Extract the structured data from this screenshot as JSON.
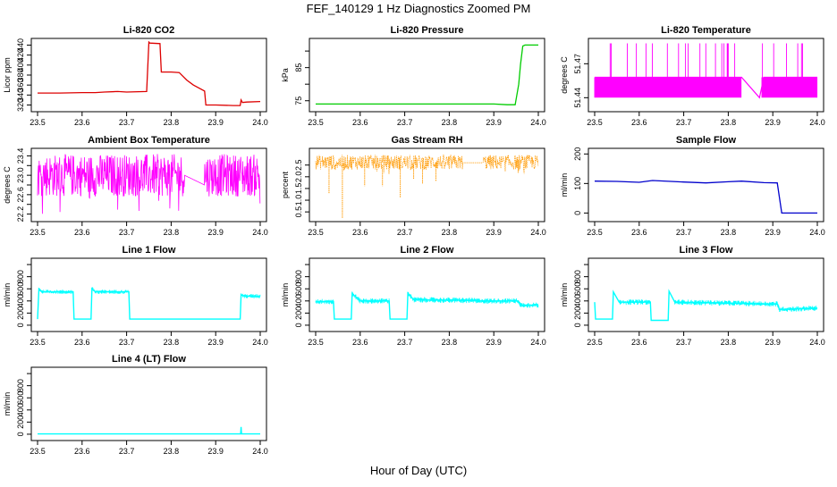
{
  "figure": {
    "title": "FEF_140129  1 Hz Diagnostics Zoomed PM",
    "xlabel": "Hour of Day (UTC)"
  },
  "chart_data": [
    {
      "type": "line",
      "title": "Li-820 CO2",
      "ylabel": "Licor ppm",
      "color": "#dd0000",
      "xlim": [
        23.5,
        24.0
      ],
      "x_ticks": [
        "23.5",
        "23.6",
        "23.7",
        "23.8",
        "23.9",
        "24.0"
      ],
      "ylim": [
        312,
        448
      ],
      "y_ticks": [
        320,
        340,
        360,
        380,
        400,
        420,
        440
      ],
      "series": [
        {
          "x": [
            23.5,
            23.55,
            23.6,
            23.63,
            23.65,
            23.68,
            23.7,
            23.745,
            23.75,
            23.752,
            23.775,
            23.778,
            23.8,
            23.818,
            23.835,
            23.85,
            23.875,
            23.878,
            23.9,
            23.94,
            23.955,
            23.957,
            23.96,
            23.97,
            24.0
          ],
          "y": [
            344,
            344,
            345,
            345,
            346,
            347,
            346,
            347,
            446,
            444,
            443,
            386,
            386,
            385,
            370,
            360,
            348,
            320,
            320,
            319,
            319,
            330,
            325,
            326,
            327
          ]
        }
      ]
    },
    {
      "type": "line",
      "title": "Li-820 Pressure",
      "ylabel": "kPa",
      "color": "#00cc00",
      "xlim": [
        23.5,
        24.0
      ],
      "x_ticks": [
        "23.5",
        "23.6",
        "23.7",
        "23.8",
        "23.9",
        "24.0"
      ],
      "ylim": [
        72.5,
        93
      ],
      "y_ticks": [
        75,
        80,
        85,
        90
      ],
      "y_tick_labels": [
        "75",
        "",
        "85",
        ""
      ],
      "series": [
        {
          "x": [
            23.5,
            23.7,
            23.9,
            23.93,
            23.948,
            23.956,
            23.96,
            23.965,
            23.97,
            24.0
          ],
          "y": [
            74.0,
            74.0,
            74.0,
            73.8,
            73.8,
            80,
            86,
            91.5,
            91.8,
            91.8
          ]
        }
      ]
    },
    {
      "type": "line",
      "title": "Li-820 Temperature",
      "ylabel": "degrees C",
      "color": "#ff00ff",
      "xlim": [
        23.5,
        24.0
      ],
      "x_ticks": [
        "23.5",
        "23.6",
        "23.7",
        "23.8",
        "23.9",
        "24.0"
      ],
      "ylim": [
        51.43,
        51.49
      ],
      "y_ticks": [
        51.44,
        51.47
      ],
      "y_tick_labels": [
        "51.44",
        "51.47"
      ],
      "series": [
        {
          "x": [
            23.5,
            23.83,
            23.87,
            23.88,
            24.0
          ],
          "y": [
            51.458,
            51.458,
            51.44,
            51.458,
            51.458
          ],
          "base_level": 51.44,
          "upper_level": 51.458,
          "spike_level": 51.488,
          "gap": [
            23.83,
            23.875
          ]
        }
      ]
    },
    {
      "type": "line",
      "title": "Ambient Box Temperature",
      "ylabel": "degrees C",
      "color": "#ff00ff",
      "xlim": [
        23.5,
        24.0
      ],
      "x_ticks": [
        "23.5",
        "23.6",
        "23.7",
        "23.8",
        "23.9",
        "24.0"
      ],
      "ylim": [
        22.1,
        23.5
      ],
      "y_ticks": [
        22.2,
        22.4,
        22.6,
        22.8,
        23.0,
        23.2,
        23.4
      ],
      "y_tick_labels": [
        "22.2",
        "",
        "22.6",
        "",
        "23.0",
        "",
        "23.4"
      ],
      "series": [
        {
          "x": [
            23.5,
            23.83,
            23.875,
            23.88,
            24.0
          ],
          "y": [
            23.0,
            23.0,
            22.8,
            23.05,
            23.05
          ],
          "range_low": 22.2,
          "range_high": 23.45,
          "gap": [
            23.83,
            23.875
          ]
        }
      ]
    },
    {
      "type": "scatter",
      "title": "Gas Stream RH",
      "ylabel": "percent",
      "color": "#ff9900",
      "xlim": [
        23.5,
        24.0
      ],
      "x_ticks": [
        "23.5",
        "23.6",
        "23.7",
        "23.8",
        "23.9",
        "24.0"
      ],
      "ylim": [
        0.2,
        3.1
      ],
      "y_ticks": [
        0.5,
        1.0,
        1.5,
        2.0,
        2.5
      ],
      "y_tick_labels": [
        "0.5",
        "1.0",
        "1.5",
        "2.0",
        "2.5"
      ],
      "series": [
        {
          "x": [
            23.5,
            23.56,
            23.6,
            23.7,
            23.8,
            23.83,
            23.875,
            23.88,
            24.0
          ],
          "y": [
            2.65,
            2.6,
            2.6,
            2.62,
            2.62,
            2.6,
            2.6,
            2.65,
            2.7
          ],
          "range_low": 2.1,
          "range_high": 3.0,
          "dips": [
            [
              23.56,
              0.25
            ],
            [
              23.53,
              1.3
            ],
            [
              23.61,
              1.6
            ],
            [
              23.69,
              1.1
            ],
            [
              23.65,
              1.6
            ],
            [
              23.72,
              1.9
            ],
            [
              23.74,
              1.7
            ],
            [
              23.77,
              1.8
            ]
          ],
          "gap": [
            23.83,
            23.875
          ]
        }
      ]
    },
    {
      "type": "line",
      "title": "Sample Flow",
      "ylabel": "ml/min",
      "color": "#0000cc",
      "xlim": [
        23.5,
        24.0
      ],
      "x_ticks": [
        "23.5",
        "23.6",
        "23.7",
        "23.8",
        "23.9",
        "24.0"
      ],
      "ylim": [
        -20,
        210
      ],
      "y_ticks": [
        0,
        100,
        200
      ],
      "series": [
        {
          "x": [
            23.5,
            23.55,
            23.6,
            23.63,
            23.7,
            23.75,
            23.8,
            23.83,
            23.88,
            23.91,
            23.92,
            23.95,
            24.0
          ],
          "y": [
            108,
            107,
            104,
            110,
            105,
            102,
            106,
            108,
            103,
            102,
            0,
            0,
            0
          ]
        }
      ]
    },
    {
      "type": "line",
      "title": "Line 1 Flow",
      "ylabel": "ml/min",
      "color": "#00ffff",
      "xlim": [
        23.5,
        24.0
      ],
      "x_ticks": [
        "23.5",
        "23.6",
        "23.7",
        "23.8",
        "23.9",
        "24.0"
      ],
      "ylim": [
        -60,
        1060
      ],
      "y_ticks": [
        0,
        200,
        400,
        600,
        800,
        1000
      ],
      "y_tick_labels": [
        "0",
        "200",
        "400",
        "600",
        "800",
        ""
      ],
      "series": [
        {
          "x": [
            23.5,
            23.503,
            23.51,
            23.58,
            23.582,
            23.62,
            23.622,
            23.63,
            23.705,
            23.707,
            23.955,
            23.957,
            23.965,
            24.0
          ],
          "y": [
            100,
            600,
            550,
            550,
            100,
            100,
            600,
            550,
            550,
            100,
            100,
            500,
            480,
            480
          ]
        }
      ]
    },
    {
      "type": "line",
      "title": "Line 2 Flow",
      "ylabel": "ml/min",
      "color": "#00ffff",
      "xlim": [
        23.5,
        24.0
      ],
      "x_ticks": [
        "23.5",
        "23.6",
        "23.7",
        "23.8",
        "23.9",
        "24.0"
      ],
      "ylim": [
        -60,
        1060
      ],
      "y_ticks": [
        0,
        200,
        400,
        600,
        800,
        1000
      ],
      "y_tick_labels": [
        "0",
        "200",
        "400",
        "600",
        "800",
        ""
      ],
      "series": [
        {
          "x": [
            23.5,
            23.54,
            23.542,
            23.58,
            23.582,
            23.6,
            23.665,
            23.667,
            23.705,
            23.707,
            23.72,
            23.83,
            23.88,
            23.955,
            23.96,
            24.0
          ],
          "y": [
            390,
            390,
            100,
            100,
            520,
            400,
            400,
            100,
            100,
            530,
            420,
            410,
            400,
            400,
            330,
            330
          ]
        }
      ]
    },
    {
      "type": "line",
      "title": "Line 3 Flow",
      "ylabel": "ml/min",
      "color": "#00ffff",
      "xlim": [
        23.5,
        24.0
      ],
      "x_ticks": [
        "23.5",
        "23.6",
        "23.7",
        "23.8",
        "23.9",
        "24.0"
      ],
      "ylim": [
        -60,
        1060
      ],
      "y_ticks": [
        0,
        200,
        400,
        600,
        800,
        1000
      ],
      "y_tick_labels": [
        "0",
        "200",
        "400",
        "600",
        "800",
        ""
      ],
      "series": [
        {
          "x": [
            23.5,
            23.502,
            23.54,
            23.542,
            23.555,
            23.625,
            23.627,
            23.665,
            23.667,
            23.68,
            23.83,
            23.88,
            23.91,
            23.915,
            24.0
          ],
          "y": [
            380,
            100,
            100,
            550,
            380,
            380,
            80,
            80,
            560,
            380,
            360,
            350,
            350,
            260,
            280
          ]
        }
      ]
    },
    {
      "type": "line",
      "title": "Line 4 (LT) Flow",
      "ylabel": "ml/min",
      "color": "#00ffff",
      "xlim": [
        23.5,
        24.0
      ],
      "x_ticks": [
        "23.5",
        "23.6",
        "23.7",
        "23.8",
        "23.9",
        "24.0"
      ],
      "ylim": [
        -60,
        1060
      ],
      "y_ticks": [
        0,
        200,
        400,
        600,
        800,
        1000
      ],
      "y_tick_labels": [
        "0",
        "200",
        "400",
        "600",
        "800",
        ""
      ],
      "series": [
        {
          "x": [
            23.5,
            23.956,
            23.957,
            23.958,
            23.96,
            24.0
          ],
          "y": [
            5,
            5,
            120,
            5,
            5,
            5
          ]
        }
      ]
    }
  ]
}
